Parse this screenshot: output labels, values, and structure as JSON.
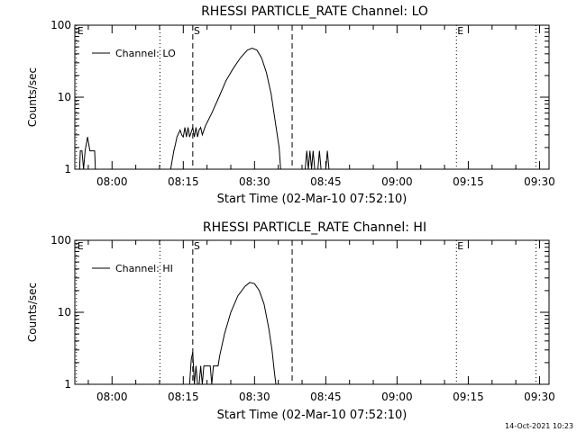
{
  "footer_stamp": "14-Oct-2021 10:23",
  "chart_data": [
    {
      "type": "line",
      "title": "RHESSI PARTICLE_RATE Channel: LO",
      "xlabel": "Start Time (02-Mar-10 07:52:10)",
      "ylabel": "Counts/sec",
      "xlim": [
        "07:52:10",
        "09:32:00"
      ],
      "ylim": [
        1,
        100
      ],
      "yscale": "log",
      "x_ticks": [
        "08:00",
        "08:15",
        "08:30",
        "08:45",
        "09:00",
        "09:15",
        "09:30"
      ],
      "y_ticks": [
        "1",
        "10",
        "100"
      ],
      "legend": {
        "label": "Channel: LO",
        "placement": "top-left"
      },
      "markers": [
        {
          "time": "07:52:30",
          "style": "dotted",
          "label": "E"
        },
        {
          "time": "08:10:05",
          "style": "dotted",
          "label": ""
        },
        {
          "time": "08:17:00",
          "style": "dashed",
          "label": "S"
        },
        {
          "time": "08:37:55",
          "style": "dashed",
          "label": ""
        },
        {
          "time": "09:12:30",
          "style": "dotted",
          "label": "E"
        },
        {
          "time": "09:29:15",
          "style": "dotted",
          "label": ""
        }
      ],
      "series": [
        {
          "name": "Channel: LO",
          "segments": [
            [
              [
                "07:53:10",
                1
              ],
              [
                "07:53:20",
                1.8
              ],
              [
                "07:53:40",
                1.8
              ],
              [
                "07:54:00",
                1
              ],
              [
                "07:54:20",
                1.8
              ],
              [
                "07:54:50",
                2.8
              ],
              [
                "07:55:20",
                1.8
              ],
              [
                "07:55:40",
                1.8
              ],
              [
                "07:56:20",
                1.8
              ],
              [
                "07:56:30",
                1
              ]
            ],
            [
              [
                "08:12:20",
                1
              ],
              [
                "08:13:00",
                1.8
              ],
              [
                "08:13:20",
                2.2
              ],
              [
                "08:13:40",
                2.8
              ],
              [
                "08:14:20",
                3.5
              ],
              [
                "08:14:40",
                3.0
              ],
              [
                "08:15:00",
                2.8
              ],
              [
                "08:15:20",
                3.8
              ],
              [
                "08:15:40",
                2.8
              ],
              [
                "08:16:00",
                3.8
              ],
              [
                "08:16:20",
                2.8
              ],
              [
                "08:17:00",
                3.8
              ],
              [
                "08:17:20",
                2.8
              ],
              [
                "08:17:40",
                3.8
              ],
              [
                "08:18:00",
                2.8
              ],
              [
                "08:18:20",
                3.5
              ],
              [
                "08:18:40",
                3.8
              ],
              [
                "08:19:00",
                3.0
              ],
              [
                "08:19:40",
                4.0
              ],
              [
                "08:21:00",
                6
              ],
              [
                "08:22:30",
                10
              ],
              [
                "08:24:00",
                17
              ],
              [
                "08:25:30",
                25
              ],
              [
                "08:27:00",
                35
              ],
              [
                "08:28:30",
                45
              ],
              [
                "08:29:30",
                48
              ],
              [
                "08:30:30",
                45
              ],
              [
                "08:31:30",
                35
              ],
              [
                "08:32:30",
                22
              ],
              [
                "08:33:30",
                11
              ],
              [
                "08:34:30",
                4
              ],
              [
                "08:35:10",
                2
              ],
              [
                "08:35:30",
                1
              ]
            ],
            [
              [
                "08:40:40",
                1
              ],
              [
                "08:41:00",
                1.8
              ],
              [
                "08:41:20",
                1
              ],
              [
                "08:41:40",
                1.8
              ],
              [
                "08:42:00",
                1
              ],
              [
                "08:42:20",
                1.8
              ],
              [
                "08:42:40",
                1
              ],
              [
                "08:43:20",
                1
              ],
              [
                "08:43:40",
                1.8
              ],
              [
                "08:44:00",
                1
              ],
              [
                "08:45:00",
                1
              ],
              [
                "08:45:20",
                1.8
              ],
              [
                "08:45:40",
                1
              ]
            ]
          ]
        }
      ]
    },
    {
      "type": "line",
      "title": "RHESSI PARTICLE_RATE Channel: HI",
      "xlabel": "Start Time (02-Mar-10 07:52:10)",
      "ylabel": "Counts/sec",
      "xlim": [
        "07:52:10",
        "09:32:00"
      ],
      "ylim": [
        1,
        100
      ],
      "yscale": "log",
      "x_ticks": [
        "08:00",
        "08:15",
        "08:30",
        "08:45",
        "09:00",
        "09:15",
        "09:30"
      ],
      "y_ticks": [
        "1",
        "10",
        "100"
      ],
      "legend": {
        "label": "Channel: HI",
        "placement": "top-left"
      },
      "markers": [
        {
          "time": "07:52:30",
          "style": "dotted",
          "label": "E"
        },
        {
          "time": "08:10:05",
          "style": "dotted",
          "label": ""
        },
        {
          "time": "08:17:00",
          "style": "dashed",
          "label": "S"
        },
        {
          "time": "08:37:55",
          "style": "dashed",
          "label": ""
        },
        {
          "time": "09:12:30",
          "style": "dotted",
          "label": "E"
        },
        {
          "time": "09:29:15",
          "style": "dotted",
          "label": ""
        }
      ],
      "series": [
        {
          "name": "Channel: HI",
          "segments": [
            [
              [
                "08:16:20",
                1
              ],
              [
                "08:16:40",
                2.2
              ],
              [
                "08:17:00",
                2.8
              ],
              [
                "08:17:20",
                1
              ],
              [
                "08:17:40",
                1.8
              ],
              [
                "08:18:00",
                1
              ],
              [
                "08:18:20",
                1
              ],
              [
                "08:18:40",
                1.8
              ],
              [
                "08:19:00",
                1
              ],
              [
                "08:19:20",
                1.8
              ],
              [
                "08:20:40",
                1.8
              ],
              [
                "08:21:00",
                1
              ],
              [
                "08:21:20",
                1.8
              ],
              [
                "08:22:20",
                1.8
              ],
              [
                "08:22:40",
                2.5
              ],
              [
                "08:23:40",
                5
              ],
              [
                "08:25:00",
                10
              ],
              [
                "08:26:30",
                17
              ],
              [
                "08:28:00",
                23
              ],
              [
                "08:29:00",
                26
              ],
              [
                "08:30:00",
                25
              ],
              [
                "08:31:00",
                20
              ],
              [
                "08:32:00",
                13
              ],
              [
                "08:33:00",
                6
              ],
              [
                "08:33:40",
                3
              ],
              [
                "08:34:10",
                1.5
              ],
              [
                "08:34:30",
                1
              ]
            ]
          ]
        }
      ]
    }
  ]
}
